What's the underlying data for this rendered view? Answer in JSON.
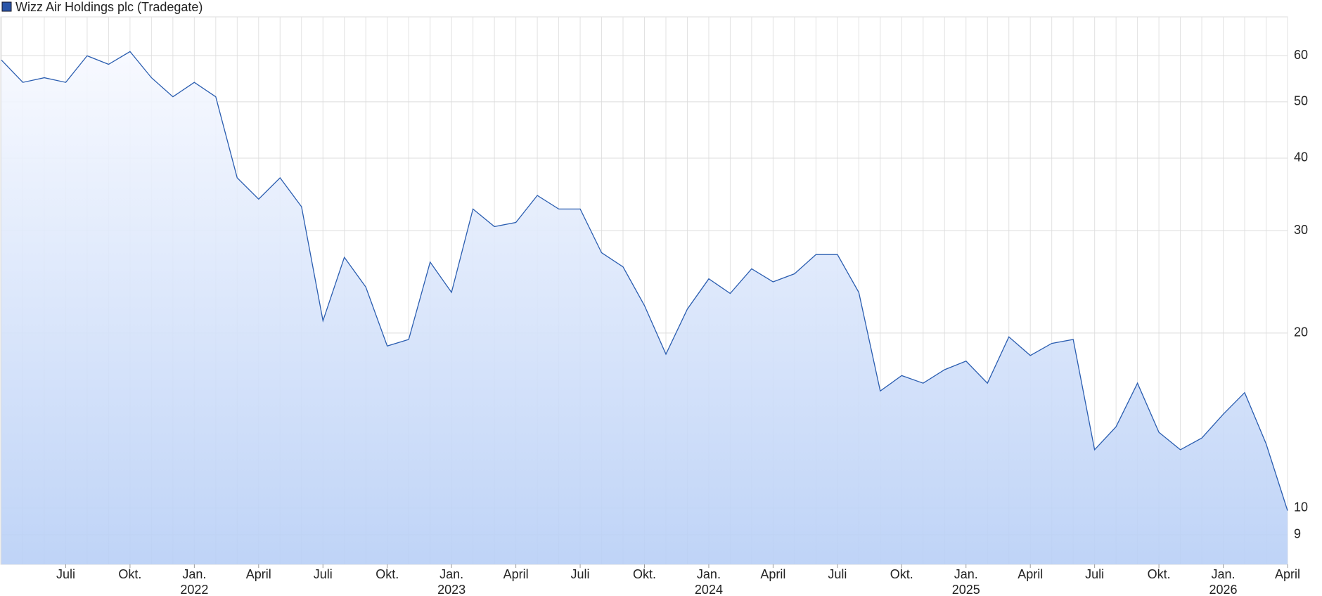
{
  "chart_data": {
    "type": "line",
    "title": "Wizz Air Holdings plc (Tradegate)",
    "log_scale": true,
    "grid": true,
    "x": [
      "2021-04",
      "2021-05",
      "2021-06",
      "2021-07",
      "2021-08",
      "2021-09",
      "2021-10",
      "2021-11",
      "2021-12",
      "2022-01",
      "2022-02",
      "2022-03",
      "2022-04",
      "2022-05",
      "2022-06",
      "2022-07",
      "2022-08",
      "2022-09",
      "2022-10",
      "2022-11",
      "2022-12",
      "2023-01",
      "2023-02",
      "2023-03",
      "2023-04",
      "2023-05",
      "2023-06",
      "2023-07",
      "2023-08",
      "2023-09",
      "2023-10",
      "2023-11",
      "2023-12",
      "2024-01",
      "2024-02",
      "2024-03",
      "2024-04",
      "2024-05",
      "2024-06",
      "2024-07",
      "2024-08",
      "2024-09",
      "2024-10",
      "2024-11",
      "2024-12",
      "2025-01",
      "2025-02",
      "2025-03",
      "2025-04",
      "2025-05",
      "2025-06",
      "2025-07",
      "2025-08",
      "2025-09",
      "2025-10",
      "2025-11",
      "2025-12",
      "2026-01",
      "2026-02",
      "2026-03",
      "2026-04"
    ],
    "series": [
      {
        "name": "Wizz Air Holdings plc (Tradegate)",
        "color": "#2a5db0",
        "values": [
          59,
          54,
          55,
          54,
          60,
          58,
          61,
          55,
          51,
          54,
          51,
          37,
          34,
          37,
          33,
          21,
          27,
          24,
          19,
          19.5,
          26.5,
          23.5,
          32.7,
          30.5,
          31,
          34.5,
          32.7,
          32.7,
          27.5,
          26,
          22.3,
          18.4,
          22,
          24.8,
          23.4,
          25.8,
          24.5,
          25.3,
          27.3,
          27.3,
          23.5,
          15.9,
          16.9,
          16.4,
          17.3,
          17.9,
          16.4,
          19.7,
          18.3,
          19.2,
          19.5,
          12.6,
          13.8,
          16.4,
          13.5,
          12.6,
          13.2,
          14.5,
          15.8,
          12.9,
          9.9
        ]
      }
    ],
    "xlim": [
      "2021-04",
      "2026-04"
    ],
    "xticks": [
      {
        "value": "2021-07",
        "label": "Juli"
      },
      {
        "value": "2021-10",
        "label": "Okt."
      },
      {
        "value": "2022-01",
        "label": "Jan.",
        "year": "2022"
      },
      {
        "value": "2022-04",
        "label": "April"
      },
      {
        "value": "2022-07",
        "label": "Juli"
      },
      {
        "value": "2022-10",
        "label": "Okt."
      },
      {
        "value": "2023-01",
        "label": "Jan.",
        "year": "2023"
      },
      {
        "value": "2023-04",
        "label": "April"
      },
      {
        "value": "2023-07",
        "label": "Juli"
      },
      {
        "value": "2023-10",
        "label": "Okt."
      },
      {
        "value": "2024-01",
        "label": "Jan.",
        "year": "2024"
      },
      {
        "value": "2024-04",
        "label": "April"
      },
      {
        "value": "2024-07",
        "label": "Juli"
      },
      {
        "value": "2024-10",
        "label": "Okt."
      },
      {
        "value": "2025-01",
        "label": "Jan.",
        "year": "2025"
      },
      {
        "value": "2025-04",
        "label": "April"
      },
      {
        "value": "2025-07",
        "label": "Juli"
      },
      {
        "value": "2025-10",
        "label": "Okt."
      },
      {
        "value": "2026-01",
        "label": "Jan.",
        "year": "2026"
      },
      {
        "value": "2026-04",
        "label": "April"
      }
    ],
    "ylim": [
      8,
      70
    ],
    "yticks": [
      9,
      10,
      20,
      30,
      40,
      50,
      60
    ]
  }
}
